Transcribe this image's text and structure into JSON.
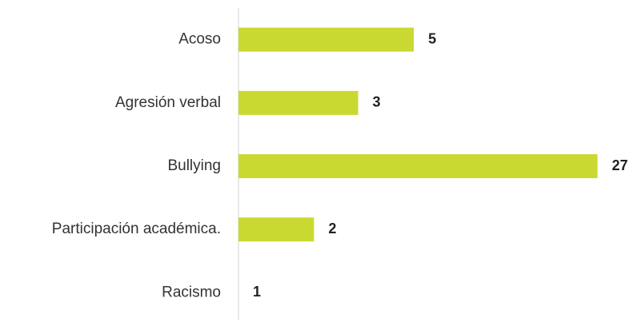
{
  "chart_data": {
    "type": "bar",
    "orientation": "horizontal",
    "categories": [
      "Acoso",
      "Agresión verbal",
      "Bullying",
      "Participación académica.",
      "Racismo"
    ],
    "values": [
      5,
      3,
      27,
      2,
      1
    ],
    "color": "#c9d932",
    "xscale": "log",
    "xlim": [
      1,
      30
    ],
    "grid": false
  }
}
